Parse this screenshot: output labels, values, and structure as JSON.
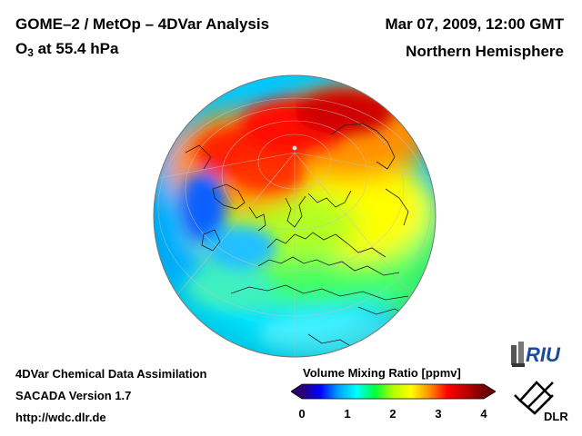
{
  "header": {
    "title": "GOME–2 / MetOp – 4DVar Analysis",
    "species_prefix": "O",
    "species_subscript": "3",
    "species_suffix": " at 55.4 hPa",
    "date": "Mar 07, 2009, 12:00 GMT",
    "region": "Northern Hemisphere"
  },
  "footer": {
    "line1": "4DVar Chemical Data Assimilation",
    "line2": "SACADA Version 1.7",
    "line3": "http://wdc.dlr.de"
  },
  "legend": {
    "title": "Volume Mixing Ratio [ppmv]",
    "min": 0,
    "max": 4,
    "ticks": [
      "0",
      "1",
      "2",
      "3",
      "4"
    ],
    "colors": [
      "#2a0070",
      "#0000ff",
      "#00a0ff",
      "#00ffff",
      "#00ff40",
      "#b0ff00",
      "#ffff00",
      "#ff9000",
      "#ff0000",
      "#c00000",
      "#700000"
    ]
  },
  "logos": {
    "riu": "RIU",
    "dlr": "DLR"
  },
  "map": {
    "projection": "orthographic",
    "center": "North Pole / Europe",
    "field": "O3 mixing ratio"
  }
}
